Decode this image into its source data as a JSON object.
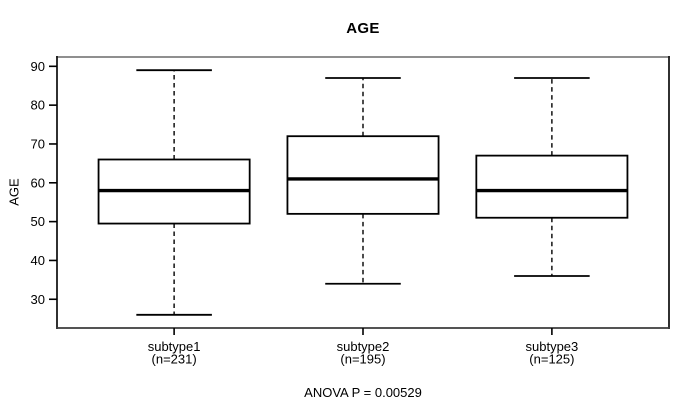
{
  "chart_data": {
    "type": "boxplot",
    "title": "AGE",
    "ylabel": "AGE",
    "xlabel": "",
    "annotation": "ANOVA P = 0.00529",
    "ylim": [
      22.6,
      92.4
    ],
    "yticks": [
      30,
      40,
      50,
      60,
      70,
      80,
      90
    ],
    "grid": false,
    "legend": "none",
    "groups": [
      {
        "label": "subtype1",
        "count_label": "(n=231)",
        "n": 231,
        "whisker_low": 26,
        "q1": 49.5,
        "median": 58,
        "q3": 66,
        "whisker_high": 89,
        "outliers": []
      },
      {
        "label": "subtype2",
        "count_label": "(n=195)",
        "n": 195,
        "whisker_low": 34,
        "q1": 52,
        "median": 61,
        "q3": 72,
        "whisker_high": 87,
        "outliers": []
      },
      {
        "label": "subtype3",
        "count_label": "(n=125)",
        "n": 125,
        "whisker_low": 36,
        "q1": 51,
        "median": 58,
        "q3": 67,
        "whisker_high": 87,
        "outliers": []
      }
    ],
    "colors": {
      "line": "#000000",
      "box_fill": "#ffffff",
      "frame_top": "#8f8f8f",
      "frame_side": "#1a1a1a",
      "frame_bottom": "#3c3c3c",
      "background": "#ffffff"
    }
  }
}
